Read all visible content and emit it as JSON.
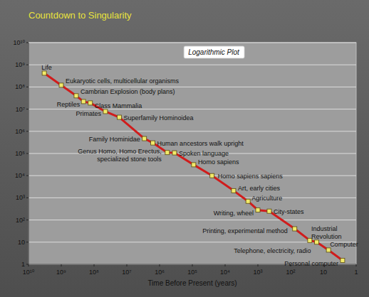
{
  "chart_data": {
    "type": "line",
    "title": "Countdown to Singularity",
    "subtitle": "Logarithmic Plot",
    "x_label": "Time Before Present (years)",
    "log": true,
    "grid": "y",
    "xlim": [
      10000000000,
      1
    ],
    "ylim": [
      1,
      10000000000
    ],
    "xticks": [
      {
        "value": 10000000000,
        "label": "10¹⁰"
      },
      {
        "value": 1000000000,
        "label": "10⁹"
      },
      {
        "value": 100000000,
        "label": "10⁸"
      },
      {
        "value": 10000000,
        "label": "10⁷"
      },
      {
        "value": 1000000,
        "label": "10⁶"
      },
      {
        "value": 100000,
        "label": "10⁵"
      },
      {
        "value": 10000,
        "label": "10⁴"
      },
      {
        "value": 1000,
        "label": "10³"
      },
      {
        "value": 100,
        "label": "10²"
      },
      10,
      1
    ],
    "yticks": [
      {
        "value": 10000000000,
        "label": "10¹⁰"
      },
      {
        "value": 1000000000,
        "label": "10⁹"
      },
      {
        "value": 100000000,
        "label": "10⁸"
      },
      {
        "value": 10000000,
        "label": "10⁷"
      },
      {
        "value": 1000000,
        "label": "10⁶"
      },
      {
        "value": 100000,
        "label": "10⁵"
      },
      {
        "value": 10000,
        "label": "10⁴"
      },
      {
        "value": 1000,
        "label": "10³"
      },
      {
        "value": 100,
        "label": "10²"
      },
      10,
      1
    ],
    "x": [
      3300000000,
      1000000000,
      350000000,
      210000000,
      130000000,
      45000000,
      17000000,
      2900000,
      1600000,
      580000,
      350000,
      91000,
      25000,
      5500,
      2000,
      1000,
      450,
      75,
      26,
      16,
      7,
      2.6
    ],
    "series": [
      {
        "values": [
          420000000,
          120000000,
          40000000,
          22000000,
          19000000,
          7800000,
          4300000,
          470000,
          300000,
          110000,
          107000,
          31000,
          10000,
          2100,
          700,
          280,
          250,
          40,
          12,
          10,
          4.4,
          1.5
        ],
        "color": "#d01c1c",
        "marker": "square",
        "line_style": "solid"
      }
    ],
    "annotations": [
      "Life",
      "Eukaryotic cells, multicellular organisms",
      "Cambrian Explosion (body plans)",
      "Reptiles",
      "Class Mammalia",
      "Primates",
      "Superfamily Hominoidea",
      "Family Hominidae",
      "Human ancestors walk upright",
      "Genus Homo, Homo Erectus,\nspecialized stone tools",
      "Spoken language",
      "Homo sapiens",
      "Homo sapiens sapiens",
      "Art, early cities",
      "Agriculture",
      "Writing, wheel",
      "City-states",
      "Printing, experimental method",
      "Industrial\nRevolution",
      "Telephone, electricity, radio",
      "Computer",
      "Personal computer"
    ]
  }
}
